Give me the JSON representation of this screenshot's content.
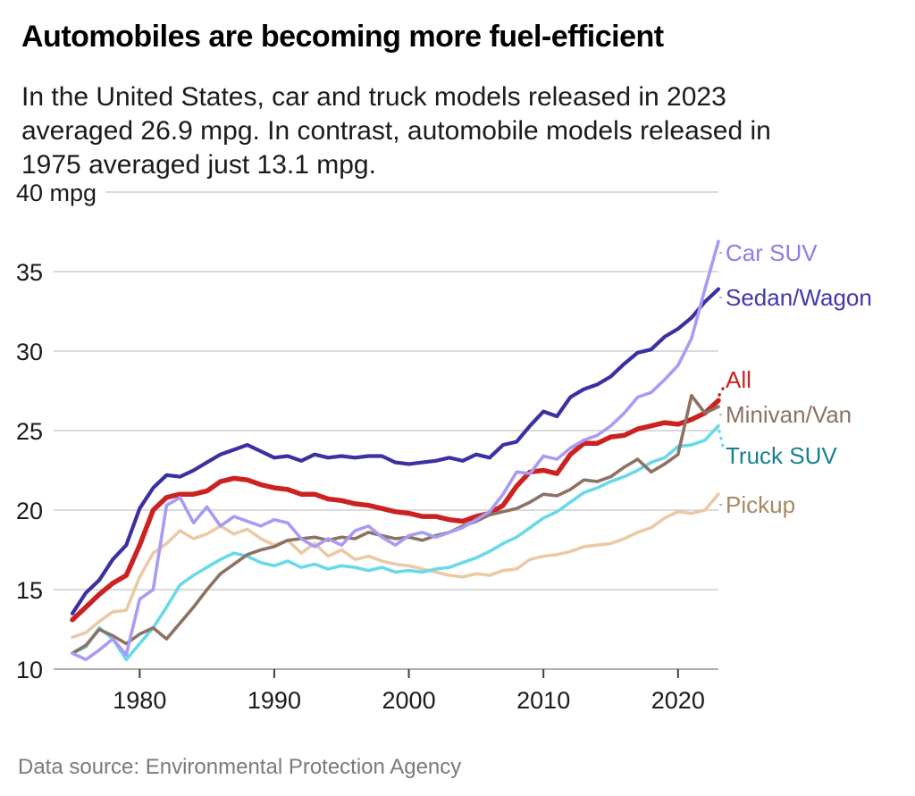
{
  "header": {
    "title": "Automobiles are becoming more fuel-efficient",
    "subtitle_lines": [
      "In the United States, car and truck models released in 2023",
      "averaged 26.9 mpg. In contrast, automobile models released in",
      "1975 averaged just 13.1 mpg."
    ]
  },
  "footer": {
    "source": "Data source: Environmental Protection Agency"
  },
  "colors": {
    "background": "#ffffff",
    "grid": "#c4c4c4",
    "axis": "#a3a3a3",
    "tick": "#3f3f3f",
    "text": "#1b1b1b",
    "muted": "#7a7a7a"
  },
  "chart_data": {
    "type": "line",
    "title": "Automobiles are becoming more fuel-efficient",
    "source": "Data source: Environmental Protection Agency",
    "xlabel": "",
    "ylabel": "mpg",
    "ylim": [
      10,
      40
    ],
    "yticks": [
      10,
      15,
      20,
      25,
      30,
      35,
      40
    ],
    "y_axis_top_label": "40 mpg",
    "xticks": [
      1980,
      1990,
      2000,
      2010,
      2020
    ],
    "grid": true,
    "legend_position": "right-end-labels",
    "years": [
      1975,
      1976,
      1977,
      1978,
      1979,
      1980,
      1981,
      1982,
      1983,
      1984,
      1985,
      1986,
      1987,
      1988,
      1989,
      1990,
      1991,
      1992,
      1993,
      1994,
      1995,
      1996,
      1997,
      1998,
      1999,
      2000,
      2001,
      2002,
      2003,
      2004,
      2005,
      2006,
      2007,
      2008,
      2009,
      2010,
      2011,
      2012,
      2013,
      2014,
      2015,
      2016,
      2017,
      2018,
      2019,
      2020,
      2021,
      2022,
      2023
    ],
    "series": [
      {
        "name": "Car SUV",
        "color": "#a99af3",
        "label_color": "#8d7ce9",
        "values": [
          11.0,
          10.6,
          11.2,
          11.9,
          10.9,
          14.4,
          15.0,
          20.3,
          20.8,
          19.2,
          20.2,
          19.0,
          19.6,
          19.3,
          19.0,
          19.4,
          19.2,
          18.2,
          17.7,
          18.2,
          17.8,
          18.7,
          19.0,
          18.3,
          17.8,
          18.4,
          18.6,
          18.3,
          18.6,
          18.9,
          19.4,
          19.9,
          21.0,
          22.4,
          22.3,
          23.4,
          23.2,
          23.9,
          24.4,
          24.7,
          25.3,
          26.1,
          27.1,
          27.4,
          28.2,
          29.1,
          30.8,
          33.9,
          36.9
        ]
      },
      {
        "name": "Sedan/Wagon",
        "color": "#3b30a2",
        "label_color": "#4337ab",
        "values": [
          13.5,
          14.8,
          15.6,
          16.9,
          17.8,
          20.1,
          21.4,
          22.2,
          22.1,
          22.5,
          23.0,
          23.5,
          23.8,
          24.1,
          23.7,
          23.3,
          23.4,
          23.1,
          23.5,
          23.3,
          23.4,
          23.3,
          23.4,
          23.4,
          23.0,
          22.9,
          23.0,
          23.1,
          23.3,
          23.1,
          23.5,
          23.3,
          24.1,
          24.3,
          25.3,
          26.2,
          25.9,
          27.1,
          27.6,
          27.9,
          28.4,
          29.2,
          29.9,
          30.1,
          30.9,
          31.4,
          32.1,
          33.1,
          33.9
        ]
      },
      {
        "name": "All",
        "color": "#cc2121",
        "label_color": "#cc2121",
        "emphasis": true,
        "values": [
          13.1,
          13.9,
          14.7,
          15.4,
          15.9,
          17.8,
          20.0,
          20.8,
          21.0,
          21.0,
          21.2,
          21.8,
          22.0,
          21.9,
          21.6,
          21.4,
          21.3,
          21.0,
          21.0,
          20.7,
          20.6,
          20.4,
          20.3,
          20.1,
          19.9,
          19.8,
          19.6,
          19.6,
          19.4,
          19.3,
          19.6,
          19.8,
          20.3,
          21.5,
          22.4,
          22.5,
          22.3,
          23.5,
          24.2,
          24.2,
          24.6,
          24.7,
          25.1,
          25.3,
          25.5,
          25.4,
          25.7,
          26.1,
          26.9
        ]
      },
      {
        "name": "Minivan/Van",
        "color": "#8b7263",
        "label_color": "#8b7263",
        "values": [
          11.0,
          11.5,
          12.5,
          12.1,
          11.6,
          12.2,
          12.6,
          11.9,
          12.9,
          13.9,
          15.0,
          16.0,
          16.6,
          17.2,
          17.5,
          17.7,
          18.1,
          18.2,
          18.3,
          18.1,
          18.3,
          18.2,
          18.6,
          18.4,
          18.2,
          18.3,
          18.1,
          18.4,
          18.6,
          19.0,
          19.3,
          19.7,
          19.9,
          20.1,
          20.5,
          21.0,
          20.9,
          21.3,
          21.9,
          21.8,
          22.1,
          22.7,
          23.2,
          22.4,
          22.9,
          23.5,
          27.2,
          26.1,
          26.5
        ]
      },
      {
        "name": "Truck SUV",
        "color": "#67d9e9",
        "label_color": "#187f93",
        "values": [
          11.0,
          11.4,
          12.6,
          11.9,
          10.6,
          11.6,
          12.6,
          13.9,
          15.3,
          15.9,
          16.4,
          16.9,
          17.3,
          17.1,
          16.7,
          16.5,
          16.8,
          16.4,
          16.6,
          16.3,
          16.5,
          16.4,
          16.2,
          16.4,
          16.1,
          16.2,
          16.1,
          16.3,
          16.4,
          16.7,
          17.0,
          17.4,
          17.9,
          18.3,
          18.9,
          19.5,
          19.9,
          20.5,
          21.1,
          21.4,
          21.8,
          22.1,
          22.5,
          23.0,
          23.3,
          24.0,
          24.1,
          24.4,
          25.3
        ]
      },
      {
        "name": "Pickup",
        "color": "#ecc9a6",
        "label_color": "#a9885f",
        "values": [
          12.0,
          12.3,
          13.0,
          13.6,
          13.7,
          15.8,
          17.3,
          17.9,
          18.7,
          18.2,
          18.5,
          19.0,
          18.5,
          18.8,
          18.2,
          17.8,
          18.1,
          17.3,
          17.9,
          17.1,
          17.5,
          16.9,
          17.1,
          16.8,
          16.6,
          16.5,
          16.3,
          16.1,
          15.9,
          15.8,
          16.0,
          15.9,
          16.2,
          16.3,
          16.9,
          17.1,
          17.2,
          17.4,
          17.7,
          17.8,
          17.9,
          18.2,
          18.6,
          18.9,
          19.5,
          19.9,
          19.8,
          20.0,
          21.0
        ]
      }
    ]
  }
}
